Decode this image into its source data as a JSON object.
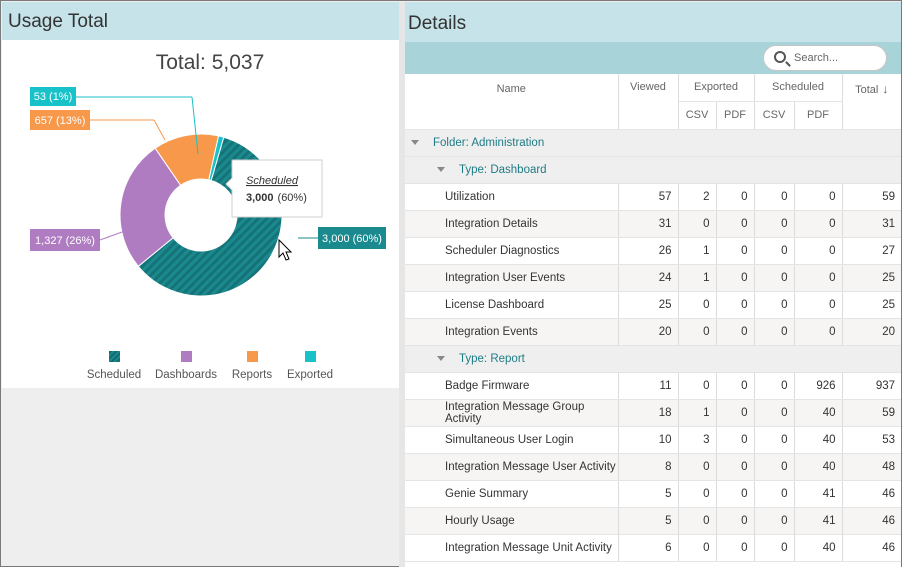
{
  "usage_panel": {
    "title": "Usage Total",
    "total_label": "Total: 5,037",
    "tooltip": {
      "title": "Scheduled",
      "value": "3,000",
      "pct": "(60%)"
    },
    "callouts": {
      "exported": "53 (1%)",
      "reports": "657 (13%)",
      "dashboards": "1,327 (26%)",
      "scheduled": "3,000 (60%)"
    }
  },
  "chart_data": {
    "type": "pie",
    "variant": "donut",
    "title": "Total: 5,037",
    "categories": [
      "Scheduled",
      "Dashboards",
      "Reports",
      "Exported"
    ],
    "values": [
      3000,
      1327,
      657,
      53
    ],
    "percents": [
      60,
      26,
      13,
      1
    ],
    "colors": [
      "#1a8a8f",
      "#b07cc1",
      "#f7984a",
      "#18c2c8"
    ],
    "legend_position": "bottom"
  },
  "details_panel": {
    "title": "Details",
    "search_placeholder": "Search...",
    "columns": {
      "name": "Name",
      "viewed": "Viewed",
      "exported": "Exported",
      "scheduled": "Scheduled",
      "total": "Total",
      "csv": "CSV",
      "pdf": "PDF"
    },
    "folder": "Folder: Administration",
    "groups": [
      {
        "label": "Type: Dashboard",
        "rows": [
          {
            "name": "Utilization",
            "viewed": "57",
            "exp_csv": "2",
            "exp_pdf": "0",
            "sch_csv": "0",
            "sch_pdf": "0",
            "total": "59"
          },
          {
            "name": "Integration Details",
            "viewed": "31",
            "exp_csv": "0",
            "exp_pdf": "0",
            "sch_csv": "0",
            "sch_pdf": "0",
            "total": "31"
          },
          {
            "name": "Scheduler Diagnostics",
            "viewed": "26",
            "exp_csv": "1",
            "exp_pdf": "0",
            "sch_csv": "0",
            "sch_pdf": "0",
            "total": "27"
          },
          {
            "name": "Integration User Events",
            "viewed": "24",
            "exp_csv": "1",
            "exp_pdf": "0",
            "sch_csv": "0",
            "sch_pdf": "0",
            "total": "25"
          },
          {
            "name": "License Dashboard",
            "viewed": "25",
            "exp_csv": "0",
            "exp_pdf": "0",
            "sch_csv": "0",
            "sch_pdf": "0",
            "total": "25"
          },
          {
            "name": "Integration Events",
            "viewed": "20",
            "exp_csv": "0",
            "exp_pdf": "0",
            "sch_csv": "0",
            "sch_pdf": "0",
            "total": "20"
          }
        ]
      },
      {
        "label": "Type: Report",
        "rows": [
          {
            "name": "Badge Firmware",
            "viewed": "11",
            "exp_csv": "0",
            "exp_pdf": "0",
            "sch_csv": "0",
            "sch_pdf": "926",
            "total": "937"
          },
          {
            "name": "Integration Message Group Activity",
            "viewed": "18",
            "exp_csv": "1",
            "exp_pdf": "0",
            "sch_csv": "0",
            "sch_pdf": "40",
            "total": "59"
          },
          {
            "name": "Simultaneous User Login",
            "viewed": "10",
            "exp_csv": "3",
            "exp_pdf": "0",
            "sch_csv": "0",
            "sch_pdf": "40",
            "total": "53"
          },
          {
            "name": "Integration Message User Activity",
            "viewed": "8",
            "exp_csv": "0",
            "exp_pdf": "0",
            "sch_csv": "0",
            "sch_pdf": "40",
            "total": "48"
          },
          {
            "name": "Genie Summary",
            "viewed": "5",
            "exp_csv": "0",
            "exp_pdf": "0",
            "sch_csv": "0",
            "sch_pdf": "41",
            "total": "46"
          },
          {
            "name": "Hourly Usage",
            "viewed": "5",
            "exp_csv": "0",
            "exp_pdf": "0",
            "sch_csv": "0",
            "sch_pdf": "41",
            "total": "46"
          },
          {
            "name": "Integration Message Unit Activity",
            "viewed": "6",
            "exp_csv": "0",
            "exp_pdf": "0",
            "sch_csv": "0",
            "sch_pdf": "40",
            "total": "46"
          }
        ]
      }
    ]
  }
}
